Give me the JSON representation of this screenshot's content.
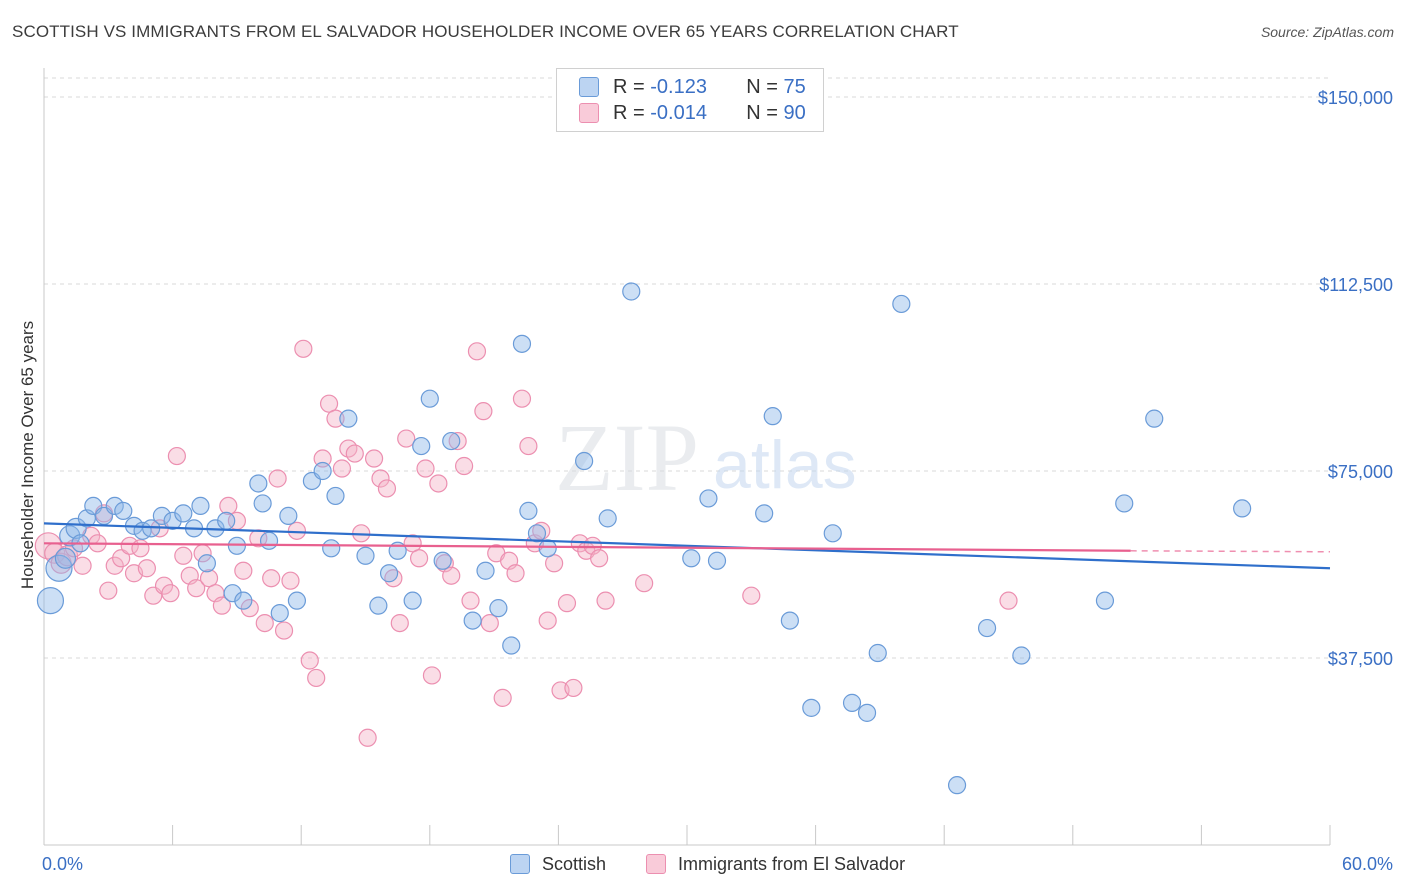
{
  "title": "SCOTTISH VS IMMIGRANTS FROM EL SALVADOR HOUSEHOLDER INCOME OVER 65 YEARS CORRELATION CHART",
  "source": "Source: ZipAtlas.com",
  "watermark": {
    "part1": "ZIP",
    "part2": "atlas"
  },
  "legend": {
    "rows": [
      {
        "r_label": "R =",
        "r_value": "-0.123",
        "n_label": "N =",
        "n_value": "75"
      },
      {
        "r_label": "R =",
        "r_value": "-0.014",
        "n_label": "N =",
        "n_value": "90"
      }
    ]
  },
  "colors": {
    "blue": "#8fb8e8",
    "blue_stroke": "#6a9bd8",
    "blue_line": "#2f6fcb",
    "pink": "#f4b4c8",
    "pink_stroke": "#ec8fb0",
    "pink_line": "#e8608f",
    "axis_text": "#3a6fc4",
    "grid": "#d8d8d8"
  },
  "chart_data": {
    "type": "scatter",
    "title": "SCOTTISH VS IMMIGRANTS FROM EL SALVADOR HOUSEHOLDER INCOME OVER 65 YEARS CORRELATION CHART",
    "xlabel": "",
    "ylabel": "Householder Income Over 65 years",
    "xlim": [
      0,
      60
    ],
    "ylim": [
      0,
      155000
    ],
    "x_tick_labels": [
      "0.0%",
      "60.0%"
    ],
    "y_ticks": [
      37500,
      75000,
      112500,
      150000
    ],
    "y_tick_labels": [
      "$37,500",
      "$75,000",
      "$112,500",
      "$150,000"
    ],
    "grid": true,
    "legend_position": "top-center",
    "series": [
      {
        "name": "Scottish",
        "trend": {
          "x": [
            0,
            60
          ],
          "y": [
            64500,
            55500
          ]
        },
        "points": [
          [
            0.3,
            49000
          ],
          [
            0.7,
            55500
          ],
          [
            1.0,
            57500
          ],
          [
            1.2,
            62000
          ],
          [
            1.5,
            63500
          ],
          [
            1.7,
            60500
          ],
          [
            2.0,
            65500
          ],
          [
            2.3,
            68000
          ],
          [
            2.8,
            66000
          ],
          [
            3.3,
            68000
          ],
          [
            3.7,
            67000
          ],
          [
            4.2,
            64000
          ],
          [
            4.6,
            63000
          ],
          [
            5.0,
            63500
          ],
          [
            5.5,
            66000
          ],
          [
            6.0,
            65000
          ],
          [
            6.5,
            66500
          ],
          [
            7.0,
            63500
          ],
          [
            7.3,
            68000
          ],
          [
            7.6,
            56500
          ],
          [
            8.0,
            63500
          ],
          [
            8.5,
            65000
          ],
          [
            8.8,
            50500
          ],
          [
            9.0,
            60000
          ],
          [
            9.3,
            49000
          ],
          [
            10.0,
            72500
          ],
          [
            10.2,
            68500
          ],
          [
            10.5,
            61000
          ],
          [
            11.0,
            46500
          ],
          [
            11.4,
            66000
          ],
          [
            11.8,
            49000
          ],
          [
            12.5,
            73000
          ],
          [
            13.0,
            75000
          ],
          [
            13.4,
            59500
          ],
          [
            13.6,
            70000
          ],
          [
            14.2,
            85500
          ],
          [
            15.0,
            58000
          ],
          [
            15.6,
            48000
          ],
          [
            16.1,
            54500
          ],
          [
            16.5,
            59000
          ],
          [
            17.2,
            49000
          ],
          [
            17.6,
            80000
          ],
          [
            18.0,
            89500
          ],
          [
            18.6,
            57000
          ],
          [
            19.0,
            81000
          ],
          [
            20.0,
            45000
          ],
          [
            20.6,
            55000
          ],
          [
            21.2,
            47500
          ],
          [
            21.8,
            40000
          ],
          [
            22.3,
            100500
          ],
          [
            22.6,
            67000
          ],
          [
            23.0,
            62500
          ],
          [
            23.5,
            59500
          ],
          [
            25.2,
            77000
          ],
          [
            26.3,
            65500
          ],
          [
            27.4,
            111000
          ],
          [
            30.2,
            57500
          ],
          [
            31.0,
            69500
          ],
          [
            31.4,
            57000
          ],
          [
            33.6,
            66500
          ],
          [
            34.0,
            86000
          ],
          [
            34.8,
            45000
          ],
          [
            35.8,
            27500
          ],
          [
            36.8,
            62500
          ],
          [
            37.7,
            28500
          ],
          [
            38.4,
            26500
          ],
          [
            38.9,
            38500
          ],
          [
            40.0,
            108500
          ],
          [
            42.6,
            12000
          ],
          [
            44.0,
            43500
          ],
          [
            45.6,
            38000
          ],
          [
            49.5,
            49000
          ],
          [
            50.4,
            68500
          ],
          [
            51.8,
            85500
          ],
          [
            55.9,
            67500
          ]
        ]
      },
      {
        "name": "Immigrants from El Salvador",
        "trend": {
          "x": [
            0,
            50.7
          ],
          "y": [
            60500,
            59000
          ]
        },
        "dashed_extension": {
          "x": [
            50.7,
            60
          ],
          "y": [
            59000,
            58800
          ]
        },
        "points": [
          [
            0.2,
            60000
          ],
          [
            0.5,
            58500
          ],
          [
            0.8,
            56500
          ],
          [
            1.1,
            58000
          ],
          [
            1.4,
            59500
          ],
          [
            1.8,
            56000
          ],
          [
            2.2,
            62000
          ],
          [
            2.5,
            60500
          ],
          [
            2.8,
            66500
          ],
          [
            3.0,
            51000
          ],
          [
            3.3,
            56000
          ],
          [
            3.6,
            57500
          ],
          [
            4.0,
            60000
          ],
          [
            4.2,
            54500
          ],
          [
            4.5,
            59500
          ],
          [
            4.8,
            55500
          ],
          [
            5.1,
            50000
          ],
          [
            5.4,
            63500
          ],
          [
            5.6,
            52000
          ],
          [
            5.9,
            50500
          ],
          [
            6.2,
            78000
          ],
          [
            6.5,
            58000
          ],
          [
            6.8,
            54000
          ],
          [
            7.1,
            51500
          ],
          [
            7.4,
            58500
          ],
          [
            7.7,
            53500
          ],
          [
            8.0,
            50500
          ],
          [
            8.3,
            48000
          ],
          [
            8.6,
            68000
          ],
          [
            9.0,
            65000
          ],
          [
            9.3,
            55000
          ],
          [
            9.6,
            47500
          ],
          [
            10.0,
            61500
          ],
          [
            10.3,
            44500
          ],
          [
            10.6,
            53500
          ],
          [
            10.9,
            73500
          ],
          [
            11.2,
            43000
          ],
          [
            11.5,
            53000
          ],
          [
            11.8,
            63000
          ],
          [
            12.1,
            99500
          ],
          [
            12.4,
            37000
          ],
          [
            12.7,
            33500
          ],
          [
            13.0,
            77500
          ],
          [
            13.3,
            88500
          ],
          [
            13.6,
            85500
          ],
          [
            13.9,
            75500
          ],
          [
            14.2,
            79500
          ],
          [
            14.5,
            78500
          ],
          [
            14.8,
            62500
          ],
          [
            15.1,
            21500
          ],
          [
            15.4,
            77500
          ],
          [
            15.7,
            73500
          ],
          [
            16.0,
            71500
          ],
          [
            16.3,
            53500
          ],
          [
            16.6,
            44500
          ],
          [
            16.9,
            81500
          ],
          [
            17.2,
            60500
          ],
          [
            17.5,
            57500
          ],
          [
            17.8,
            75500
          ],
          [
            18.1,
            34000
          ],
          [
            18.4,
            72500
          ],
          [
            18.7,
            56500
          ],
          [
            19.0,
            54000
          ],
          [
            19.3,
            81000
          ],
          [
            19.6,
            76000
          ],
          [
            19.9,
            49000
          ],
          [
            20.2,
            99000
          ],
          [
            20.5,
            87000
          ],
          [
            20.8,
            44500
          ],
          [
            21.1,
            58500
          ],
          [
            21.4,
            29500
          ],
          [
            21.7,
            57000
          ],
          [
            22.0,
            54500
          ],
          [
            22.3,
            89500
          ],
          [
            22.6,
            80000
          ],
          [
            22.9,
            60500
          ],
          [
            23.2,
            63000
          ],
          [
            23.5,
            45000
          ],
          [
            23.8,
            56500
          ],
          [
            24.1,
            31000
          ],
          [
            24.4,
            48500
          ],
          [
            24.7,
            31500
          ],
          [
            25.0,
            60500
          ],
          [
            25.3,
            59000
          ],
          [
            25.6,
            60000
          ],
          [
            25.9,
            57500
          ],
          [
            26.2,
            49000
          ],
          [
            28.0,
            52500
          ],
          [
            33.0,
            50000
          ],
          [
            45.0,
            49000
          ]
        ]
      }
    ]
  },
  "bottom_legend": {
    "items": [
      "Scottish",
      "Immigrants from El Salvador"
    ]
  }
}
